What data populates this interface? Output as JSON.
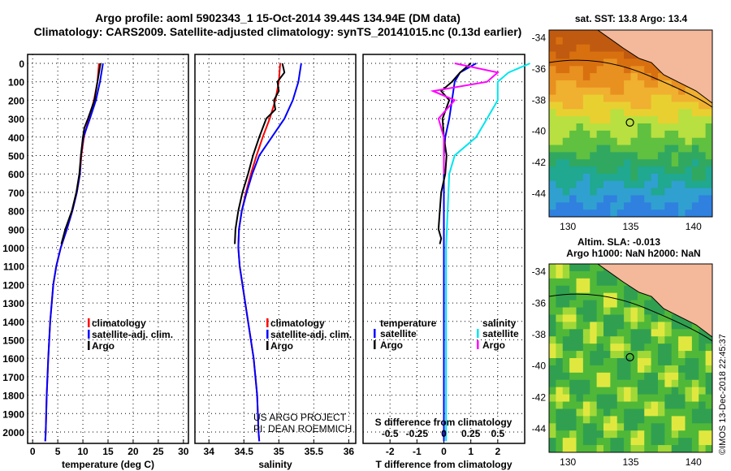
{
  "title": "Argo profile: aoml 5902343_1 15-Oct-2014 39.44S 134.94E (DM data)",
  "subtitle": "Climatology: CARS2009. Satellite-adjusted climatology: synTS_20141015.nc (0.13d earlier)",
  "colors": {
    "climatology": "#ff0000",
    "satellite": "#0000ff",
    "argo": "#000000",
    "sal_satellite": "#00e5ee",
    "sal_argo": "#ff00ff"
  },
  "chart_data": [
    {
      "type": "line",
      "xlabel": "temperature (deg C)",
      "xlim": [
        -1,
        31
      ],
      "ylim": [
        2050,
        -50
      ],
      "xticks": [
        "0",
        "5",
        "10",
        "15",
        "20",
        "25",
        "30"
      ],
      "xtick_values": [
        0,
        5,
        10,
        15,
        20,
        25,
        30
      ],
      "yticks": [
        "0",
        "100",
        "200",
        "300",
        "400",
        "500",
        "600",
        "700",
        "800",
        "900",
        "1000",
        "1100",
        "1200",
        "1300",
        "1400",
        "1500",
        "1600",
        "1700",
        "1800",
        "1900",
        "2000"
      ],
      "legend": [
        "climatology",
        "satellite-adj. clim.",
        "Argo"
      ],
      "series": [
        {
          "name": "climatology",
          "depth": [
            0,
            100,
            200,
            300,
            400,
            500,
            600,
            700,
            800,
            900,
            1000,
            1100,
            1200,
            1400,
            1600,
            1800,
            2000,
            2050
          ],
          "values": [
            13.2,
            12.9,
            12.2,
            11.2,
            10.2,
            9.7,
            9.4,
            8.8,
            7.9,
            6.8,
            5.6,
            4.7,
            4.1,
            3.5,
            3.1,
            2.8,
            2.6,
            2.5
          ]
        },
        {
          "name": "satellite-adj. clim.",
          "depth": [
            0,
            100,
            200,
            300,
            400,
            500,
            600,
            700,
            800,
            900,
            1000,
            1100,
            1200,
            1400,
            1600,
            1800,
            2000,
            2050
          ],
          "values": [
            14.0,
            13.4,
            12.6,
            11.4,
            10.1,
            9.6,
            9.4,
            8.8,
            7.9,
            6.8,
            5.6,
            4.7,
            4.1,
            3.5,
            3.1,
            2.8,
            2.6,
            2.5
          ]
        },
        {
          "name": "Argo",
          "depth": [
            0,
            50,
            100,
            200,
            300,
            350,
            400,
            500,
            600,
            700,
            800,
            900,
            980
          ],
          "values": [
            13.5,
            13.2,
            12.9,
            12.3,
            11.0,
            10.3,
            10.0,
            9.6,
            9.3,
            8.7,
            7.8,
            6.5,
            5.7
          ]
        }
      ]
    },
    {
      "type": "line",
      "xlabel": "salinity",
      "xlim": [
        33.8,
        36.1
      ],
      "ylim": [
        2050,
        -50
      ],
      "xticks": [
        "34",
        "34.5",
        "35",
        "35.5",
        "36"
      ],
      "xtick_values": [
        34,
        34.5,
        35,
        35.5,
        36
      ],
      "legend": [
        "climatology",
        "satellite-adj. clim.",
        "Argo"
      ],
      "credits": [
        "US ARGO PROJECT",
        "PI: DEAN ROEMMICH"
      ],
      "series": [
        {
          "name": "climatology",
          "depth": [
            0,
            100,
            200,
            300,
            400,
            500,
            600,
            700,
            800,
            900,
            1000,
            1100,
            1200,
            1400,
            1600,
            1800,
            2000,
            2050
          ],
          "values": [
            35.02,
            35.0,
            34.95,
            34.87,
            34.77,
            34.68,
            34.6,
            34.53,
            34.47,
            34.43,
            34.42,
            34.44,
            34.48,
            34.56,
            34.64,
            34.69,
            34.71,
            34.72
          ]
        },
        {
          "name": "satellite-adj. clim.",
          "depth": [
            0,
            50,
            100,
            200,
            300,
            400,
            500,
            600,
            700,
            800,
            900,
            1000,
            1100,
            1200,
            1400,
            1600,
            1800,
            2000,
            2050
          ],
          "values": [
            35.32,
            35.3,
            35.28,
            35.2,
            35.08,
            34.9,
            34.72,
            34.62,
            34.54,
            34.47,
            34.43,
            34.42,
            34.44,
            34.48,
            34.56,
            34.64,
            34.69,
            34.71,
            34.72
          ]
        },
        {
          "name": "Argo",
          "depth": [
            0,
            50,
            100,
            150,
            200,
            250,
            300,
            400,
            500,
            600,
            700,
            800,
            900,
            980
          ],
          "values": [
            35.05,
            35.08,
            34.98,
            35.0,
            34.93,
            34.95,
            34.82,
            34.72,
            34.63,
            34.56,
            34.48,
            34.42,
            34.38,
            34.37
          ]
        }
      ]
    },
    {
      "type": "line",
      "xlabel": "T difference from climatology",
      "s_xlabel": "S difference from climatology",
      "xlim": [
        -3,
        3
      ],
      "ylim": [
        2050,
        -50
      ],
      "xticks": [
        "-2",
        "-1",
        "0",
        "1",
        "2"
      ],
      "xtick_values": [
        -2,
        -1,
        0,
        1,
        2
      ],
      "s_xticks": [
        "-0.5",
        "-0.25",
        "0",
        "0.25",
        "0.5"
      ],
      "legend_temperature": {
        "title": "temperature",
        "items": [
          "satellite",
          "Argo"
        ]
      },
      "legend_salinity": {
        "title": "salinity",
        "items": [
          "satellite",
          "Argo"
        ]
      },
      "series": [
        {
          "name": "T satellite",
          "depth": [
            0,
            50,
            100,
            200,
            300,
            400,
            500,
            600,
            2050
          ],
          "values": [
            1.2,
            0.6,
            0.4,
            0.3,
            0.2,
            0.05,
            0,
            0,
            0
          ]
        },
        {
          "name": "T Argo",
          "depth": [
            0,
            50,
            100,
            150,
            200,
            300,
            400,
            500,
            600,
            700,
            800,
            900,
            950,
            980
          ],
          "values": [
            1.0,
            0.6,
            0.3,
            -0.1,
            0.2,
            -0.05,
            0,
            0.1,
            0.05,
            -0.1,
            -0.15,
            -0.2,
            -0.1,
            -0.15
          ]
        },
        {
          "name": "S satellite",
          "depth": [
            0,
            50,
            100,
            200,
            300,
            400,
            500,
            600,
            1000,
            2050
          ],
          "values": [
            0.8,
            0.6,
            0.5,
            0.5,
            0.4,
            0.3,
            0.1,
            0.05,
            0.02,
            0.02
          ]
        },
        {
          "name": "S Argo",
          "depth": [
            0,
            50,
            100,
            150,
            200,
            300,
            400,
            500,
            600
          ],
          "values": [
            0.1,
            0.5,
            0.4,
            -0.1,
            0.1,
            -0.05,
            0,
            0,
            0
          ]
        }
      ]
    }
  ],
  "maps": [
    {
      "title": "sat. SST: 13.8 Argo: 13.4",
      "yticks": [
        "-34",
        "-36",
        "-38",
        "-40",
        "-42",
        "-44"
      ],
      "xticks": [
        "130",
        "135",
        "140"
      ]
    },
    {
      "title": "Altim. SLA: -0.013",
      "title2": "Argo h1000: NaN h2000: NaN",
      "yticks": [
        "-34",
        "-36",
        "-38",
        "-40",
        "-42",
        "-44"
      ],
      "xticks": [
        "130",
        "135",
        "140"
      ]
    }
  ],
  "watermark": "©IMOS 13-Dec-2018 22:45:37"
}
